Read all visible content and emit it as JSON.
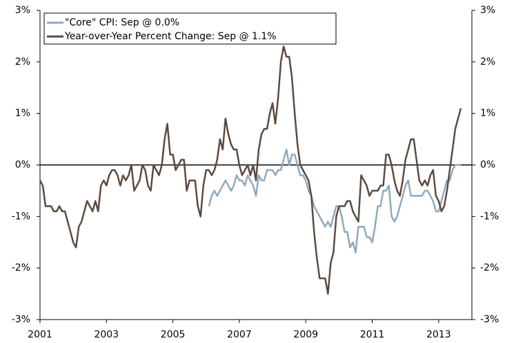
{
  "chart_data": {
    "type": "line",
    "x": [
      2001,
      2001.083,
      2001.167,
      2001.25,
      2001.333,
      2001.417,
      2001.5,
      2001.583,
      2001.667,
      2001.75,
      2001.833,
      2001.917,
      2002,
      2002.083,
      2002.167,
      2002.25,
      2002.333,
      2002.417,
      2002.5,
      2002.583,
      2002.667,
      2002.75,
      2002.833,
      2002.917,
      2003,
      2003.083,
      2003.167,
      2003.25,
      2003.333,
      2003.417,
      2003.5,
      2003.583,
      2003.667,
      2003.75,
      2003.833,
      2003.917,
      2004,
      2004.083,
      2004.167,
      2004.25,
      2004.333,
      2004.417,
      2004.5,
      2004.583,
      2004.667,
      2004.75,
      2004.833,
      2004.917,
      2005,
      2005.083,
      2005.167,
      2005.25,
      2005.333,
      2005.417,
      2005.5,
      2005.583,
      2005.667,
      2005.75,
      2005.833,
      2005.917,
      2006,
      2006.083,
      2006.167,
      2006.25,
      2006.333,
      2006.417,
      2006.5,
      2006.583,
      2006.667,
      2006.75,
      2006.833,
      2006.917,
      2007,
      2007.083,
      2007.167,
      2007.25,
      2007.333,
      2007.417,
      2007.5,
      2007.583,
      2007.667,
      2007.75,
      2007.833,
      2007.917,
      2008,
      2008.083,
      2008.167,
      2008.25,
      2008.333,
      2008.417,
      2008.5,
      2008.583,
      2008.667,
      2008.75,
      2008.833,
      2008.917,
      2009,
      2009.083,
      2009.167,
      2009.25,
      2009.333,
      2009.417,
      2009.5,
      2009.583,
      2009.667,
      2009.75,
      2009.833,
      2009.917,
      2010,
      2010.083,
      2010.167,
      2010.25,
      2010.333,
      2010.417,
      2010.5,
      2010.583,
      2010.667,
      2010.75,
      2010.833,
      2010.917,
      2011,
      2011.083,
      2011.167,
      2011.25,
      2011.333,
      2011.417,
      2011.5,
      2011.583,
      2011.667,
      2011.75,
      2011.833,
      2011.917,
      2012,
      2012.083,
      2012.167,
      2012.25,
      2012.333,
      2012.417,
      2012.5,
      2012.583,
      2012.667,
      2012.75,
      2012.833,
      2012.917,
      2013,
      2013.083,
      2013.167,
      2013.25,
      2013.333,
      2013.417,
      2013.5,
      2013.583,
      2013.667
    ],
    "series": [
      {
        "name": "\"Core\" CPI: Sep @ 0.0%",
        "color": "#8ea9bd",
        "values": [
          null,
          null,
          null,
          null,
          null,
          null,
          null,
          null,
          null,
          null,
          null,
          null,
          null,
          null,
          null,
          null,
          null,
          null,
          null,
          null,
          null,
          null,
          null,
          null,
          null,
          null,
          null,
          null,
          null,
          null,
          null,
          null,
          null,
          null,
          null,
          null,
          null,
          null,
          null,
          null,
          null,
          null,
          null,
          null,
          null,
          null,
          null,
          null,
          null,
          null,
          null,
          null,
          null,
          null,
          null,
          null,
          null,
          null,
          null,
          null,
          null,
          -0.8,
          -0.6,
          -0.5,
          -0.6,
          -0.5,
          -0.4,
          -0.3,
          -0.4,
          -0.5,
          -0.4,
          -0.2,
          -0.3,
          -0.3,
          -0.4,
          -0.2,
          -0.3,
          -0.4,
          -0.6,
          -0.2,
          -0.3,
          -0.3,
          -0.1,
          -0.1,
          -0.1,
          -0.2,
          -0.1,
          -0.1,
          0.1,
          0.3,
          0.0,
          0.2,
          0.2,
          0.0,
          -0.2,
          -0.2,
          -0.3,
          -0.5,
          -0.6,
          -0.8,
          -0.9,
          -1.0,
          -1.1,
          -1.2,
          -1.1,
          -1.2,
          -1.0,
          -0.8,
          -0.8,
          -1.0,
          -1.3,
          -1.3,
          -1.6,
          -1.5,
          -1.7,
          -1.2,
          -1.2,
          -1.2,
          -1.4,
          -1.4,
          -1.5,
          -1.2,
          -0.8,
          -0.8,
          -0.5,
          -0.5,
          -0.4,
          -1.0,
          -1.1,
          -1.0,
          -0.8,
          -0.6,
          -0.4,
          -0.3,
          -0.6,
          -0.6,
          -0.6,
          -0.6,
          -0.6,
          -0.5,
          -0.5,
          -0.6,
          -0.7,
          -0.9,
          -0.9,
          -0.7,
          -0.5,
          -0.3,
          -0.3,
          -0.1,
          0.0,
          0.0,
          0.0
        ]
      },
      {
        "name": "Year-over-Year Percent Change: Sep @ 1.1%",
        "color": "#5a4a3e",
        "values": [
          -0.3,
          -0.4,
          -0.8,
          -0.8,
          -0.8,
          -0.9,
          -0.9,
          -0.8,
          -0.9,
          -0.9,
          -1.1,
          -1.3,
          -1.5,
          -1.6,
          -1.2,
          -1.1,
          -0.9,
          -0.7,
          -0.8,
          -0.9,
          -0.7,
          -0.9,
          -0.4,
          -0.3,
          -0.4,
          -0.2,
          -0.1,
          -0.1,
          -0.2,
          -0.4,
          -0.2,
          -0.3,
          -0.2,
          0.0,
          -0.5,
          -0.4,
          -0.3,
          0.0,
          -0.1,
          -0.4,
          -0.5,
          0.0,
          -0.1,
          -0.2,
          0.0,
          0.5,
          0.8,
          0.2,
          0.2,
          -0.1,
          0.0,
          0.1,
          0.1,
          -0.5,
          -0.3,
          -0.3,
          -0.3,
          -0.8,
          -1.0,
          -0.4,
          -0.1,
          -0.1,
          -0.2,
          -0.1,
          0.1,
          0.5,
          0.3,
          0.9,
          0.6,
          0.4,
          0.3,
          0.3,
          0.0,
          -0.2,
          -0.1,
          0.0,
          -0.2,
          0.0,
          -0.3,
          0.3,
          0.6,
          0.7,
          0.7,
          1.0,
          1.2,
          0.8,
          1.3,
          2.0,
          2.3,
          2.1,
          2.1,
          1.7,
          1.0,
          0.4,
          0.0,
          -0.1,
          -0.2,
          -0.3,
          -0.6,
          -1.3,
          -1.8,
          -2.2,
          -2.2,
          -2.2,
          -2.5,
          -1.9,
          -1.7,
          -1.0,
          -0.8,
          -0.8,
          -0.8,
          -0.7,
          -0.7,
          -0.9,
          -1.0,
          -1.1,
          -0.2,
          -0.3,
          -0.4,
          -0.6,
          -0.5,
          -0.5,
          -0.5,
          -0.4,
          -0.4,
          0.2,
          0.2,
          0.0,
          -0.3,
          -0.5,
          -0.6,
          -0.3,
          0.1,
          0.3,
          0.5,
          0.5,
          0.1,
          -0.3,
          -0.4,
          -0.3,
          -0.4,
          -0.2,
          -0.1,
          -0.6,
          -0.7,
          -0.9,
          -0.8,
          -0.5,
          -0.1,
          0.3,
          0.7,
          0.9,
          1.1
        ]
      }
    ],
    "xlim": [
      2001,
      2014
    ],
    "xticks": [
      2001,
      2003,
      2005,
      2007,
      2009,
      2011,
      2013
    ],
    "ylim": [
      -3,
      3
    ],
    "yticks": [
      {
        "value": -3,
        "label": "-3%"
      },
      {
        "value": -2,
        "label": "-2%"
      },
      {
        "value": -1,
        "label": "-1%"
      },
      {
        "value": 0,
        "label": "0%"
      },
      {
        "value": 1,
        "label": "1%"
      },
      {
        "value": 2,
        "label": "2%"
      },
      {
        "value": 3,
        "label": "3%"
      }
    ],
    "y2lim": [
      -3,
      3
    ],
    "y2ticks": [
      {
        "value": -3,
        "label": "-3%"
      },
      {
        "value": -2,
        "label": "-2%"
      },
      {
        "value": -1,
        "label": "-1%"
      },
      {
        "value": 0,
        "label": "0%"
      },
      {
        "value": 1,
        "label": "1%"
      },
      {
        "value": 2,
        "label": "2%"
      },
      {
        "value": 3,
        "label": "3%"
      }
    ],
    "legend": "upper left"
  }
}
